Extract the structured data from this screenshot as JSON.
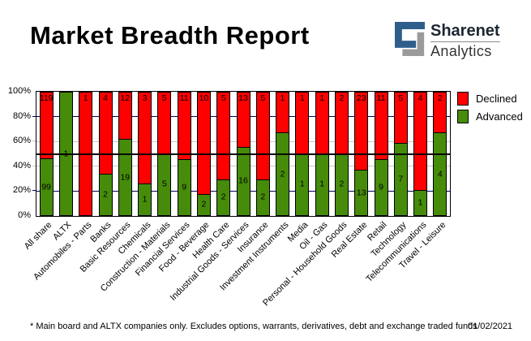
{
  "header": {
    "title": "Market Breadth Report",
    "logo": {
      "brand": "Sharenet",
      "brand_sub": "Analytics",
      "icon": "sharenet-s-maze-icon",
      "icon_blue": "#2e5f8c",
      "icon_gray": "#9a9a9a"
    }
  },
  "chart_data": {
    "type": "bar",
    "subtype": "stacked-100-percent-column",
    "title": "Market Breadth Report",
    "categories": [
      "All share",
      "ALTX",
      "Automobiles - Parts",
      "Banks",
      "Basic Resources",
      "Chemicals",
      "Construction - Materials",
      "Financial Services",
      "Food - Beverage",
      "Health Care",
      "Industrial Goods - Services",
      "Insurance",
      "Investment Instruments",
      "Media",
      "Oil - Gas",
      "Personal - Household Goods",
      "Real Estate",
      "Retail",
      "Technology",
      "Telecommunications",
      "Travel - Leisure"
    ],
    "series": [
      {
        "name": "Declined",
        "color": "#ff0000",
        "values": [
          119,
          0,
          1,
          4,
          12,
          3,
          5,
          11,
          10,
          5,
          13,
          5,
          1,
          1,
          1,
          2,
          23,
          11,
          5,
          4,
          2
        ]
      },
      {
        "name": "Advanced",
        "color": "#468c0a",
        "values": [
          99,
          1,
          0,
          2,
          19,
          1,
          5,
          9,
          2,
          2,
          16,
          2,
          2,
          1,
          1,
          2,
          13,
          9,
          7,
          1,
          4
        ]
      }
    ],
    "y_axis": {
      "ticks": [
        "0%",
        "20%",
        "40%",
        "60%",
        "80%",
        "100%"
      ],
      "range": [
        0,
        100
      ],
      "unit": "%"
    },
    "gridlines": {
      "navy": [
        20,
        80
      ],
      "navy_color": "#000066",
      "gray": [
        40,
        60
      ],
      "gray_color": "#c9c9c9",
      "midline": 50,
      "midline_color": "#000000"
    },
    "legend": {
      "position": "top-right",
      "items": [
        {
          "label": "Declined",
          "color": "#ff0000"
        },
        {
          "label": "Advanced",
          "color": "#468c0a"
        }
      ]
    }
  },
  "footer": {
    "note": "* Main board and ALTX companies only. Excludes options, warrants, derivatives, debt and exchange traded funds",
    "date": "01/02/2021"
  }
}
